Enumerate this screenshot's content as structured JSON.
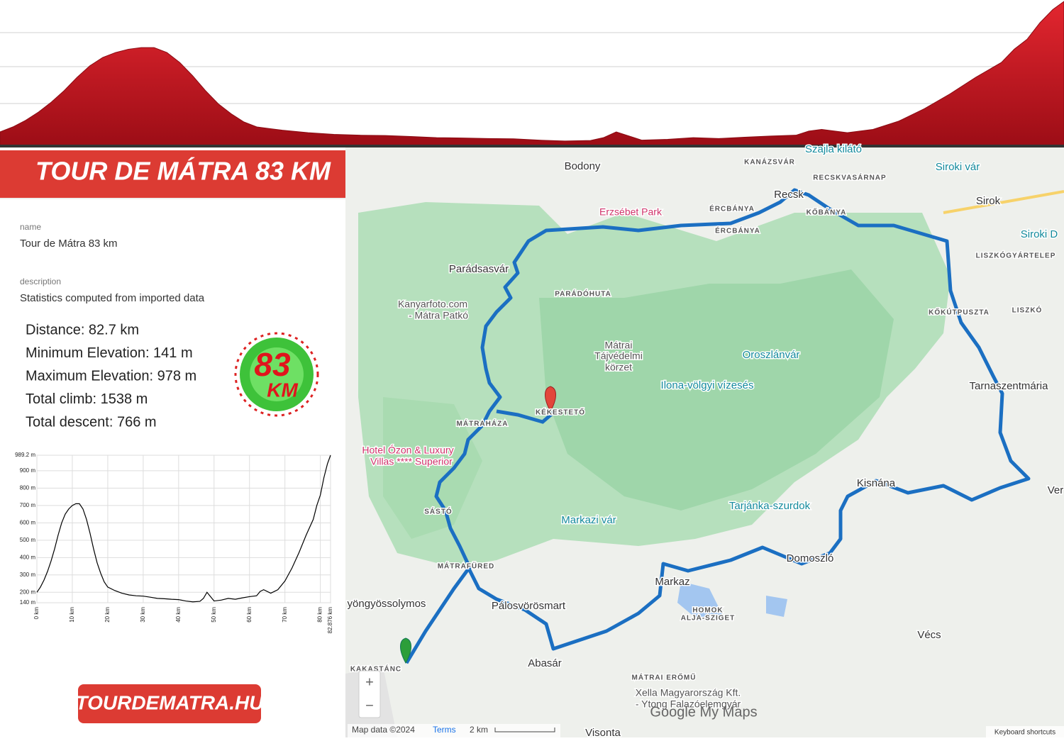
{
  "header": {
    "title": "TOUR DE MÁTRA 83 KM"
  },
  "info": {
    "name_label": "name",
    "name": "Tour de Mátra 83 km",
    "description_label": "description",
    "description": "Statistics computed from imported data"
  },
  "stats": [
    "Distance: 82.7 km",
    "Minimum Elevation: 141 m",
    "Maximum Elevation: 978 m",
    "Total climb: 1538 m",
    "Total descent: 766 m"
  ],
  "badge": {
    "number": "83",
    "unit": "KM"
  },
  "chart_data": {
    "type": "line",
    "color": "#000000",
    "x": [
      0,
      1,
      2,
      3,
      4,
      5,
      6,
      7,
      8,
      9,
      10,
      11,
      12,
      13,
      14,
      15,
      16,
      17,
      18,
      19,
      20,
      22,
      24,
      26,
      28,
      30,
      32,
      34,
      36,
      38,
      40,
      42,
      44,
      46,
      47,
      48,
      49,
      50,
      52,
      54,
      56,
      58,
      60,
      62,
      63,
      64,
      66,
      68,
      70,
      72,
      74,
      76,
      78,
      79,
      80,
      81,
      82,
      82.876
    ],
    "values": [
      200,
      230,
      270,
      320,
      380,
      450,
      530,
      600,
      650,
      680,
      700,
      710,
      710,
      680,
      620,
      540,
      450,
      370,
      310,
      260,
      230,
      210,
      195,
      185,
      180,
      178,
      172,
      165,
      163,
      160,
      158,
      150,
      145,
      148,
      165,
      200,
      175,
      150,
      155,
      165,
      160,
      168,
      175,
      180,
      205,
      215,
      195,
      215,
      265,
      340,
      430,
      530,
      620,
      700,
      760,
      860,
      940,
      989.2
    ],
    "xlim": [
      0,
      82.876
    ],
    "ylim": [
      140,
      989.2
    ],
    "xticks": [
      {
        "value": 0,
        "label": "0 km"
      },
      {
        "value": 10,
        "label": "10 km"
      },
      {
        "value": 20,
        "label": "20 km"
      },
      {
        "value": 30,
        "label": "30 km"
      },
      {
        "value": 40,
        "label": "40 km"
      },
      {
        "value": 50,
        "label": "50 km"
      },
      {
        "value": 60,
        "label": "60 km"
      },
      {
        "value": 70,
        "label": "70 km"
      },
      {
        "value": 80,
        "label": "80 km"
      },
      {
        "value": 82.876,
        "label": "82.876 km"
      }
    ],
    "yticks": [
      {
        "value": 140,
        "label": "140 m"
      },
      {
        "value": 200,
        "label": "200 m"
      },
      {
        "value": 300,
        "label": "300 m"
      },
      {
        "value": 400,
        "label": "400 m"
      },
      {
        "value": 500,
        "label": "500 m"
      },
      {
        "value": 600,
        "label": "600 m"
      },
      {
        "value": 700,
        "label": "700 m"
      },
      {
        "value": 800,
        "label": "800 m"
      },
      {
        "value": 900,
        "label": "900 m"
      },
      {
        "value": 989.2,
        "label": "989.2 m"
      }
    ],
    "grid": true
  },
  "footer": {
    "website": "TOURDEMATRA.HU"
  },
  "map": {
    "labels": [
      "Bodony",
      "Erzsébet Park",
      "ÉRCBÁNYA",
      "ÉRCBÁNYA",
      "KANÁZSVÁR",
      "RECSKVASÁRNAP",
      "Recsk",
      "KŐBÁNYA",
      "Szajla kilátó",
      "Siroki vár",
      "Sirok",
      "Siroki D",
      "LISZKÓGYÁRTELEP",
      "KŐKÚTPUSZTA",
      "LISZKÓ",
      "Tarnaszentmária",
      "Ver",
      "Kisnána",
      "Domoszló",
      "Vécs",
      "Markaz",
      "HOMOK",
      "ALJA-SZIGET",
      "MÁTRAI ERŐMŰ",
      "Xella Magyarország Kft.",
      "- Ytong Falazóelemgyár",
      "Abasár",
      "Visonta",
      "Pálosvörösmart",
      "yöngyössolymos",
      "KAKASTÁNC",
      "MÁTRAFÜRED",
      "SÁSTÓ",
      "Hotel Ózon & Luxury",
      "Villas **** Superior",
      "MÁTRAHÁZA",
      "KÉKESTETŐ",
      "Parádsasvár",
      "PARÁDÓHUTA",
      "Kanyarfoto.com",
      "- Mátra Patkó",
      "Mátrai",
      "Tájvédelmi",
      "körzet",
      "Oroszlánvár",
      "Ilona-völgyi vízesés",
      "Tarjánka-szurdok",
      "Markazi vár"
    ],
    "zoom_in": "+",
    "zoom_out": "−",
    "attribution": "Map data ©2024",
    "terms": "Terms",
    "scale": "2 km",
    "shortcuts": "Keyboard shortcuts",
    "brand": "Google My Maps"
  }
}
